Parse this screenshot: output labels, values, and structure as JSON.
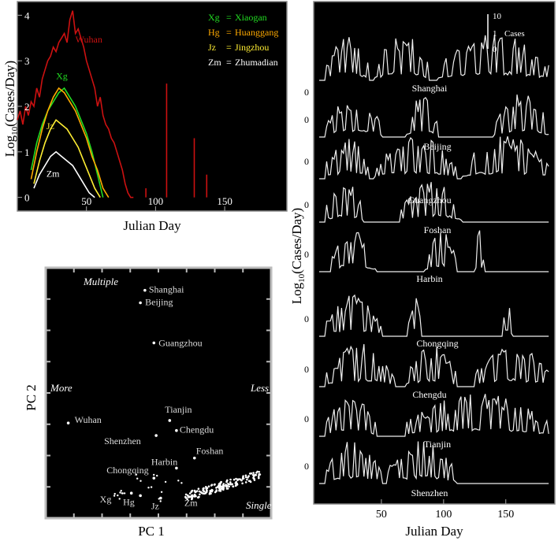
{
  "chart_data": [
    {
      "type": "line",
      "panel": "top-left",
      "xlabel": "Julian Day",
      "ylabel_main": "Log",
      "ylabel_sub": "10",
      "ylabel_rest": "(Cases/Day)",
      "xlim": [
        0,
        195
      ],
      "ylim": [
        -0.3,
        4.3
      ],
      "xticks": [
        50,
        100,
        150
      ],
      "yticks": [
        0,
        1,
        2,
        3,
        4
      ],
      "legend": [
        {
          "abbr": "Xg",
          "eq": "=",
          "name": "Xiaogan",
          "color": "#22dd22"
        },
        {
          "abbr": "Hg",
          "eq": "=",
          "name": "Huanggang",
          "color": "#ffaa00"
        },
        {
          "abbr": "Jz",
          "eq": "=",
          "name": "Jingzhou",
          "color": "#ffee33"
        },
        {
          "abbr": "Zm",
          "eq": "=",
          "name": "Zhumadian",
          "color": "#ffffff"
        }
      ],
      "legend_position": "top-right",
      "series": [
        {
          "name": "Wuhan",
          "color": "#cc1111",
          "label": "Wuhan",
          "x": [
            0,
            2,
            4,
            6,
            8,
            10,
            12,
            14,
            16,
            18,
            20,
            22,
            24,
            26,
            28,
            30,
            32,
            34,
            36,
            38,
            40,
            42,
            44,
            46,
            48,
            50,
            52,
            54,
            56,
            58,
            60,
            62,
            64,
            66,
            68,
            70,
            72,
            74,
            76,
            78,
            80,
            82,
            84
          ],
          "y": [
            1.7,
            1.9,
            1.6,
            2.0,
            1.8,
            2.1,
            2.0,
            2.4,
            2.2,
            2.6,
            2.8,
            3.0,
            3.1,
            3.3,
            3.2,
            3.4,
            3.5,
            3.6,
            3.4,
            3.9,
            4.1,
            3.6,
            3.7,
            3.5,
            3.3,
            3.0,
            2.8,
            2.6,
            2.4,
            2.0,
            2.2,
            1.8,
            1.6,
            1.5,
            1.3,
            1.2,
            1.0,
            0.8,
            0.6,
            0.3,
            0.1,
            0,
            0
          ]
        },
        {
          "name": "Xiaogan",
          "color": "#22dd22",
          "label": "Xg",
          "x": [
            10,
            14,
            18,
            22,
            26,
            30,
            34,
            38,
            42,
            46,
            50,
            54,
            58,
            62
          ],
          "y": [
            0.6,
            1.2,
            1.6,
            1.9,
            2.1,
            2.3,
            2.4,
            2.2,
            2.0,
            1.7,
            1.4,
            1.0,
            0.5,
            0
          ]
        },
        {
          "name": "Huanggang",
          "color": "#ffaa00",
          "x": [
            10,
            14,
            18,
            22,
            26,
            30,
            34,
            38,
            42,
            46,
            50,
            54,
            58,
            62,
            66
          ],
          "y": [
            0.4,
            1.0,
            1.5,
            1.9,
            2.2,
            2.4,
            2.3,
            2.1,
            1.9,
            1.6,
            1.3,
            0.9,
            0.6,
            0.2,
            0
          ]
        },
        {
          "name": "Jingzhou",
          "color": "#ffee33",
          "label": "Jz",
          "x": [
            12,
            16,
            20,
            24,
            28,
            32,
            36,
            40,
            44,
            48,
            52,
            56,
            60
          ],
          "y": [
            0.3,
            0.8,
            1.2,
            1.5,
            1.7,
            1.6,
            1.5,
            1.3,
            1.1,
            0.8,
            0.5,
            0.2,
            0
          ]
        },
        {
          "name": "Zhumadian",
          "color": "#ffffff",
          "label": "Zm",
          "x": [
            12,
            16,
            20,
            24,
            28,
            32,
            36,
            40,
            44,
            48,
            52,
            56
          ],
          "y": [
            0.2,
            0.5,
            0.7,
            0.9,
            1.0,
            0.9,
            0.8,
            0.7,
            0.5,
            0.3,
            0.1,
            0
          ]
        }
      ],
      "spikes": [
        {
          "x": 108,
          "y": 2.5
        },
        {
          "x": 128,
          "y": 1.3
        },
        {
          "x": 137,
          "y": 0.5
        },
        {
          "x": 93,
          "y": 0.2
        }
      ]
    },
    {
      "type": "scatter",
      "panel": "bottom-left",
      "xlabel": "PC 1",
      "ylabel": "PC 2",
      "corner_labels": {
        "top": "Multiple",
        "left": "More",
        "right": "Less",
        "bottom": "Single"
      },
      "xlim": [
        0,
        1
      ],
      "ylim": [
        0,
        1
      ],
      "points": [
        {
          "label": "Shanghai",
          "x": 0.44,
          "y": 0.91
        },
        {
          "label": "Beijing",
          "x": 0.42,
          "y": 0.86
        },
        {
          "label": "Guangzhou",
          "x": 0.48,
          "y": 0.7
        },
        {
          "label": "Wuhan",
          "x": 0.1,
          "y": 0.38
        },
        {
          "label": "Tianjin",
          "x": 0.55,
          "y": 0.39
        },
        {
          "label": "Chengdu",
          "x": 0.58,
          "y": 0.35
        },
        {
          "label": "Shenzhen",
          "x": 0.49,
          "y": 0.33
        },
        {
          "label": "Foshan",
          "x": 0.66,
          "y": 0.24
        },
        {
          "label": "Harbin",
          "x": 0.58,
          "y": 0.2
        },
        {
          "label": "Chongqing",
          "x": 0.48,
          "y": 0.16
        },
        {
          "label": "Xg",
          "x": 0.38,
          "y": 0.1
        },
        {
          "label": "Hg",
          "x": 0.42,
          "y": 0.09
        },
        {
          "label": "Jz",
          "x": 0.51,
          "y": 0.08
        },
        {
          "label": "Zm",
          "x": 0.65,
          "y": 0.09
        }
      ]
    },
    {
      "type": "line",
      "panel": "right",
      "xlabel": "Julian Day",
      "ylabel_main": "Log",
      "ylabel_sub": "10",
      "ylabel_rest": "(Cases/Day)",
      "xlim": [
        0,
        185
      ],
      "xticks": [
        50,
        100,
        150
      ],
      "scale_bar": {
        "top": "10",
        "mid": "1",
        "bottom": "0",
        "units": "Cases"
      },
      "zero_label": "0",
      "cities": [
        {
          "name": "Shanghai",
          "active": [
            [
              5,
              40
            ],
            [
              65,
              90
            ],
            [
              110,
              185
            ]
          ]
        },
        {
          "name": "Beijing",
          "active": [
            [
              5,
              50
            ],
            [
              70,
              95
            ],
            [
              140,
              185
            ]
          ]
        },
        {
          "name": "Guangzhou",
          "active": [
            [
              5,
              40
            ],
            [
              45,
              110
            ],
            [
              115,
              185
            ]
          ]
        },
        {
          "name": "Foshan",
          "active": [
            [
              5,
              35
            ],
            [
              65,
              115
            ]
          ]
        },
        {
          "name": "Harbin",
          "active": [
            [
              10,
              45
            ],
            [
              85,
              110
            ],
            [
              125,
              132
            ]
          ]
        },
        {
          "name": "Chongqing",
          "active": [
            [
              5,
              50
            ],
            [
              72,
              82
            ],
            [
              148,
              155
            ]
          ]
        },
        {
          "name": "Chengdu",
          "active": [
            [
              5,
              60
            ],
            [
              70,
              110
            ],
            [
              125,
              185
            ]
          ]
        },
        {
          "name": "Tianjin",
          "active": [
            [
              5,
              45
            ],
            [
              70,
              185
            ]
          ]
        },
        {
          "name": "Shenzhen",
          "active": [
            [
              5,
              50
            ],
            [
              55,
              110
            ]
          ]
        }
      ]
    }
  ]
}
